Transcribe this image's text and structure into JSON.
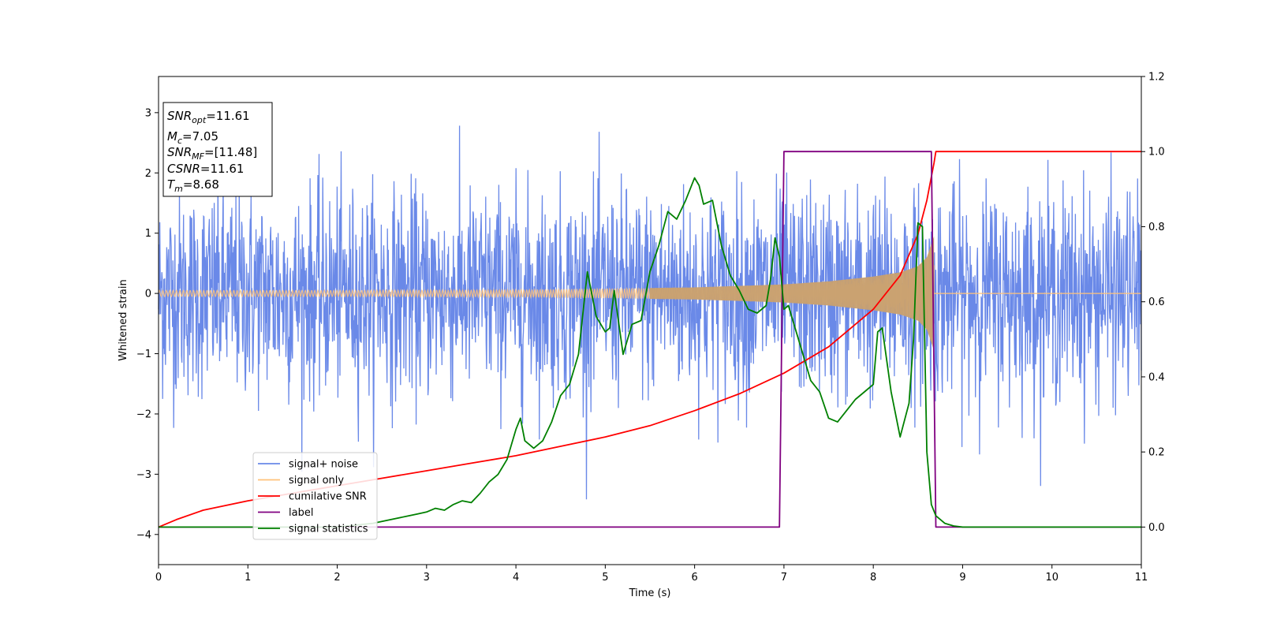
{
  "chart_data": {
    "type": "line",
    "title": "",
    "xlabel": "Time (s)",
    "ylabel": "Whitened strain",
    "xlim": [
      0,
      11
    ],
    "ylim": [
      -4.5,
      3.6
    ],
    "y2lim": [
      -0.1,
      1.2
    ],
    "x_ticks": [
      0,
      1,
      2,
      3,
      4,
      5,
      6,
      7,
      8,
      9,
      10,
      11
    ],
    "y_ticks": [
      -4,
      -3,
      -2,
      -1,
      0,
      1,
      2,
      3
    ],
    "y2_ticks": [
      "0.0",
      "0.2",
      "0.4",
      "0.6",
      "0.8",
      "1.0",
      "1.2"
    ],
    "grid": false,
    "legend_position": "lower-left",
    "info_box": {
      "snr_opt": {
        "sym": "SNR",
        "sub": "opt",
        "value": "=11.61"
      },
      "mc": {
        "sym": "M",
        "sub": "c",
        "value": "=7.05"
      },
      "snr_mf": {
        "sym": "SNR",
        "sub": "MF",
        "value": "=[11.48]"
      },
      "csnr": {
        "sym": "CSNR",
        "value": "=11.61"
      },
      "tm": {
        "sym": "T",
        "sub": "m",
        "value": "=8.68"
      }
    },
    "series": [
      {
        "name": "signal+ noise",
        "axis": "left",
        "color": "#6a89e8",
        "style": "noise",
        "noise_sigma": 0.85,
        "x_range": [
          0,
          11
        ],
        "description_values": {
          "typical_max": 3.2,
          "typical_min": -2.7
        }
      },
      {
        "name": "signal only",
        "axis": "left",
        "color": "#ffc27a",
        "style": "chirp",
        "x_range": [
          0,
          8.68
        ],
        "amplitude": {
          "x": [
            0,
            2,
            4,
            6,
            7,
            7.5,
            8,
            8.3,
            8.5,
            8.6,
            8.68
          ],
          "y": [
            0.05,
            0.05,
            0.06,
            0.1,
            0.15,
            0.2,
            0.28,
            0.35,
            0.45,
            0.6,
            0.95
          ]
        }
      },
      {
        "name": "cumilative SNR",
        "axis": "right",
        "color": "#ff0000",
        "x": [
          0,
          0.2,
          0.5,
          1,
          1.5,
          2,
          2.5,
          3,
          3.5,
          4,
          4.5,
          5,
          5.5,
          6,
          6.5,
          7,
          7.5,
          8,
          8.3,
          8.5,
          8.6,
          8.68,
          8.7,
          11
        ],
        "y": [
          0.0,
          0.02,
          0.045,
          0.07,
          0.09,
          0.11,
          0.13,
          0.15,
          0.17,
          0.19,
          0.215,
          0.24,
          0.27,
          0.31,
          0.355,
          0.41,
          0.48,
          0.58,
          0.67,
          0.78,
          0.87,
          0.97,
          1.0,
          1.0
        ]
      },
      {
        "name": "label",
        "axis": "right",
        "color": "#800080",
        "x": [
          0,
          6.95,
          7.0,
          8.65,
          8.7,
          11
        ],
        "y": [
          0.0,
          0.0,
          1.0,
          1.0,
          0.0,
          0.0
        ]
      },
      {
        "name": "signal statistics",
        "axis": "right",
        "color": "#008000",
        "x": [
          0,
          0.5,
          1,
          1.5,
          2,
          2.2,
          2.4,
          2.6,
          2.8,
          2.9,
          3,
          3.1,
          3.2,
          3.3,
          3.4,
          3.5,
          3.6,
          3.7,
          3.8,
          3.9,
          4.0,
          4.05,
          4.1,
          4.2,
          4.3,
          4.4,
          4.5,
          4.6,
          4.7,
          4.8,
          4.9,
          5.0,
          5.05,
          5.1,
          5.2,
          5.3,
          5.4,
          5.5,
          5.6,
          5.7,
          5.8,
          5.9,
          6.0,
          6.05,
          6.1,
          6.2,
          6.3,
          6.4,
          6.5,
          6.6,
          6.7,
          6.8,
          6.85,
          6.9,
          6.95,
          7.0,
          7.05,
          7.1,
          7.2,
          7.3,
          7.4,
          7.5,
          7.6,
          7.7,
          7.8,
          7.9,
          8.0,
          8.05,
          8.1,
          8.2,
          8.3,
          8.4,
          8.45,
          8.5,
          8.55,
          8.6,
          8.65,
          8.7,
          8.8,
          8.9,
          9.0,
          10,
          11
        ],
        "y": [
          0.0,
          0.0,
          0.0,
          0.0,
          0.0,
          0.005,
          0.01,
          0.02,
          0.03,
          0.035,
          0.04,
          0.05,
          0.045,
          0.06,
          0.07,
          0.065,
          0.09,
          0.12,
          0.14,
          0.18,
          0.26,
          0.29,
          0.23,
          0.21,
          0.23,
          0.28,
          0.35,
          0.38,
          0.46,
          0.68,
          0.56,
          0.52,
          0.53,
          0.63,
          0.46,
          0.54,
          0.55,
          0.68,
          0.75,
          0.84,
          0.82,
          0.87,
          0.93,
          0.91,
          0.86,
          0.87,
          0.75,
          0.67,
          0.63,
          0.58,
          0.57,
          0.59,
          0.66,
          0.77,
          0.72,
          0.58,
          0.59,
          0.55,
          0.47,
          0.39,
          0.36,
          0.29,
          0.28,
          0.31,
          0.34,
          0.36,
          0.38,
          0.52,
          0.53,
          0.36,
          0.24,
          0.33,
          0.5,
          0.81,
          0.8,
          0.2,
          0.06,
          0.03,
          0.01,
          0.003,
          0.0,
          0.0,
          0.0
        ]
      }
    ]
  }
}
